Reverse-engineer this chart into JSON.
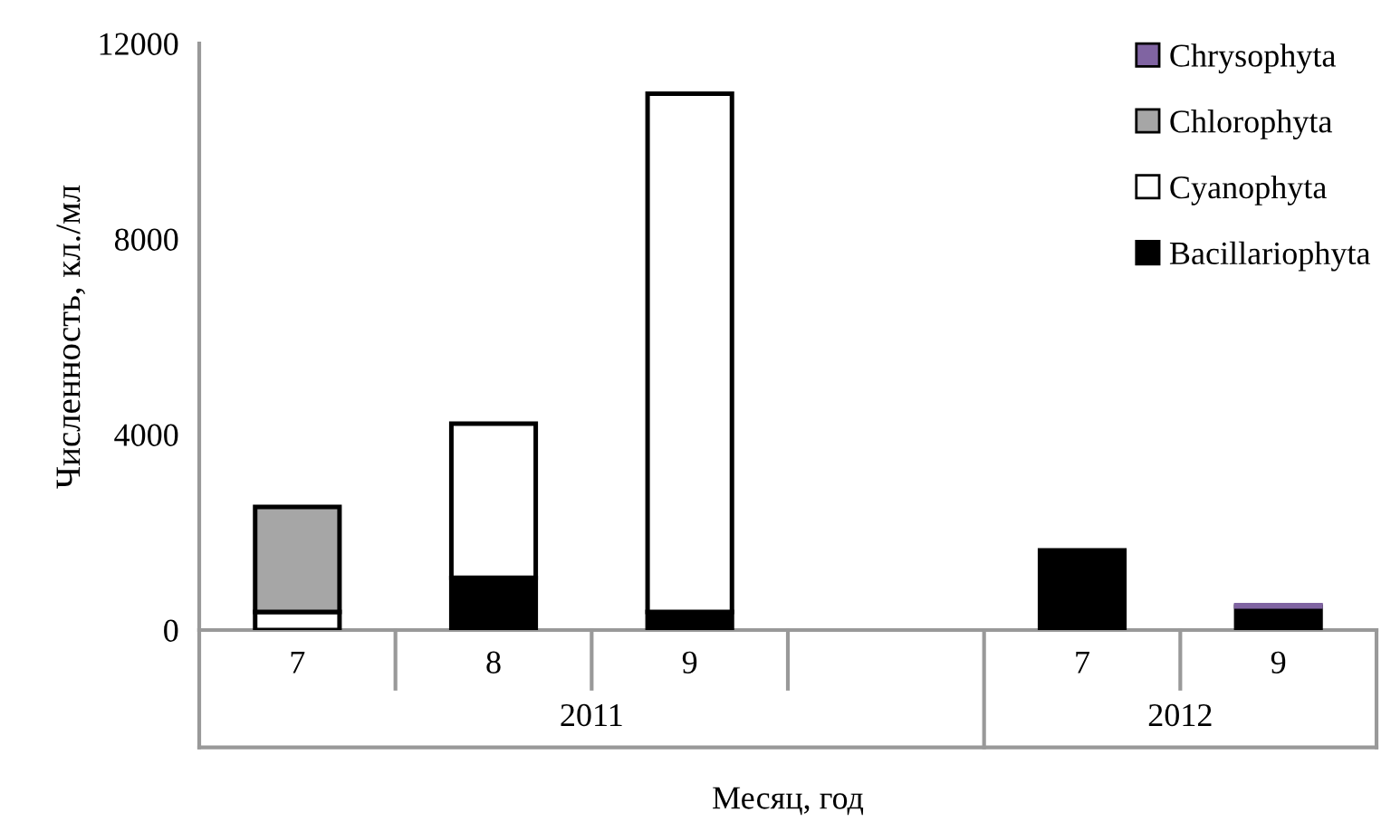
{
  "chart_data": {
    "type": "bar",
    "stacked": true,
    "xlabel": "Месяц, год",
    "ylabel": "Численность, кл./мл",
    "categories": [
      "7",
      "8",
      "9",
      null,
      "7",
      "9"
    ],
    "annotations": [
      "2011",
      "2012"
    ],
    "series": [
      {
        "name": "Bacillariophyta",
        "color": "#000000",
        "values": [
          null,
          1070,
          370,
          null,
          1630,
          480
        ]
      },
      {
        "name": "Cyanophyta",
        "color": "#ffffff",
        "values": [
          370,
          3150,
          10600,
          null,
          null,
          null
        ]
      },
      {
        "name": "Chlorophyta",
        "color": "#a6a6a6",
        "values": [
          2150,
          null,
          null,
          null,
          null,
          null
        ]
      },
      {
        "name": "Chrysophyta",
        "color": "#8064a2",
        "values": [
          null,
          null,
          null,
          null,
          null,
          30
        ]
      }
    ],
    "ylim": [
      0,
      12000
    ],
    "yticks": [
      0,
      4000,
      8000,
      12000
    ],
    "grid": false,
    "legend": "top right"
  }
}
